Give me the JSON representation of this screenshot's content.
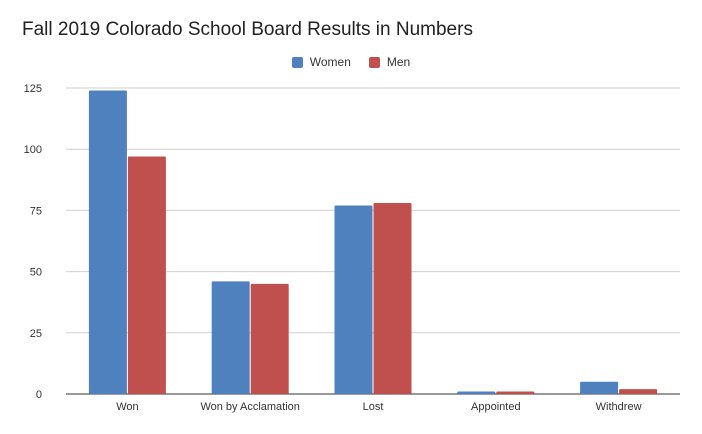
{
  "chart_data": {
    "type": "bar",
    "title": "Fall 2019 Colorado School Board Results in Numbers",
    "categories": [
      "Won",
      "Won by Acclamation",
      "Lost",
      "Appointed",
      "Withdrew"
    ],
    "series": [
      {
        "name": "Women",
        "color": "#4E81BD",
        "values": [
          124,
          46,
          77,
          1,
          5
        ]
      },
      {
        "name": "Men",
        "color": "#C0504D",
        "values": [
          97,
          45,
          78,
          1,
          2
        ]
      }
    ],
    "y_ticks": [
      "0",
      "25",
      "50",
      "75",
      "100",
      "125"
    ],
    "ylim": [
      0,
      125
    ],
    "grid": true,
    "legend_position": "top-center",
    "xlabel": "",
    "ylabel": ""
  }
}
